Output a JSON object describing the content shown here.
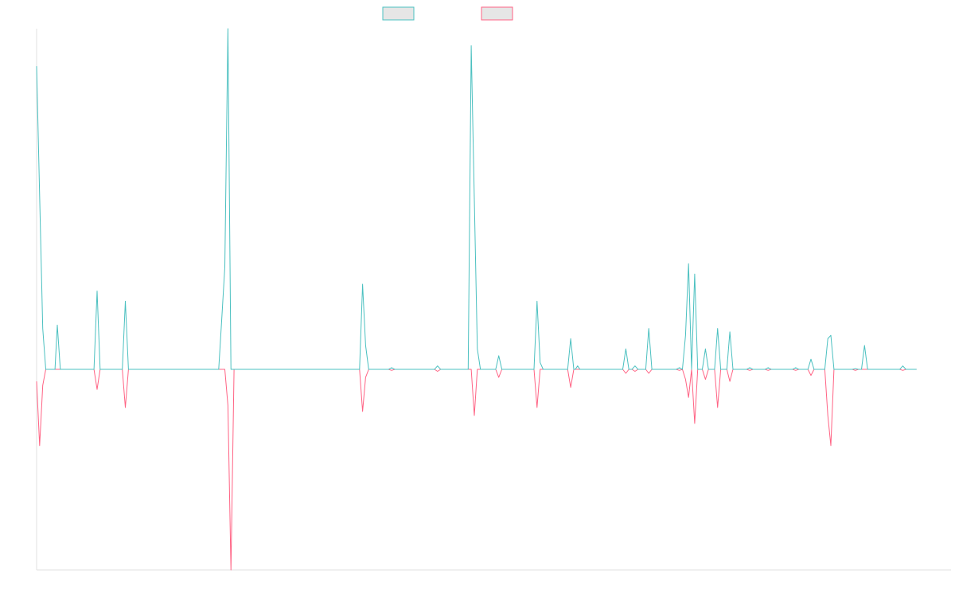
{
  "colors": {
    "series_a": "#4bc0c0",
    "series_b": "#ff6384",
    "legend_fill": "#e6e6e6",
    "axis": "#e0e0e0",
    "background": "#ffffff"
  },
  "chart_data": {
    "type": "line",
    "title": "",
    "xlabel": "",
    "ylabel": "",
    "grid": false,
    "legend": {
      "placement": "top-center",
      "show_names": false
    },
    "x_range": [
      0,
      1195
    ],
    "y_range": [
      -1.0,
      1.0
    ],
    "series": [
      {
        "color": "#4bc0c0",
        "points": [
          [
            0,
            0.89
          ],
          [
            8,
            0.12
          ],
          [
            12,
            0
          ],
          [
            24,
            0
          ],
          [
            27,
            0.13
          ],
          [
            31,
            0
          ],
          [
            75,
            0
          ],
          [
            79,
            0.23
          ],
          [
            83,
            0
          ],
          [
            112,
            0
          ],
          [
            116,
            0.2
          ],
          [
            120,
            0
          ],
          [
            238,
            0
          ],
          [
            242,
            0.15
          ],
          [
            246,
            0.3
          ],
          [
            250,
            1.0
          ],
          [
            254,
            0
          ],
          [
            422,
            0
          ],
          [
            426,
            0.25
          ],
          [
            430,
            0.07
          ],
          [
            434,
            0
          ],
          [
            460,
            0
          ],
          [
            464,
            0.005
          ],
          [
            468,
            0
          ],
          [
            520,
            0
          ],
          [
            524,
            0.01
          ],
          [
            528,
            0
          ],
          [
            564,
            0
          ],
          [
            568,
            0.95
          ],
          [
            576,
            0.06
          ],
          [
            580,
            0
          ],
          [
            600,
            0
          ],
          [
            604,
            0.04
          ],
          [
            608,
            0
          ],
          [
            650,
            0
          ],
          [
            654,
            0.2
          ],
          [
            658,
            0.02
          ],
          [
            662,
            0
          ],
          [
            694,
            0
          ],
          [
            698,
            0.09
          ],
          [
            702,
            0
          ],
          [
            704,
            0
          ],
          [
            707,
            0.01
          ],
          [
            710,
            0
          ],
          [
            766,
            0
          ],
          [
            770,
            0.06
          ],
          [
            774,
            0
          ],
          [
            778,
            0
          ],
          [
            782,
            0.01
          ],
          [
            786,
            0
          ],
          [
            796,
            0
          ],
          [
            800,
            0.12
          ],
          [
            804,
            0
          ],
          [
            836,
            0
          ],
          [
            840,
            0.005
          ],
          [
            844,
            0
          ],
          [
            848,
            0.1
          ],
          [
            852,
            0.31
          ],
          [
            856,
            0
          ],
          [
            860,
            0.28
          ],
          [
            864,
            0
          ],
          [
            870,
            0
          ],
          [
            874,
            0.06
          ],
          [
            878,
            0
          ],
          [
            886,
            0
          ],
          [
            890,
            0.12
          ],
          [
            894,
            0
          ],
          [
            902,
            0
          ],
          [
            906,
            0.11
          ],
          [
            910,
            0
          ],
          [
            928,
            0
          ],
          [
            932,
            0.005
          ],
          [
            936,
            0
          ],
          [
            952,
            0
          ],
          [
            956,
            0.005
          ],
          [
            960,
            0
          ],
          [
            988,
            0
          ],
          [
            992,
            0.005
          ],
          [
            996,
            0
          ],
          [
            1008,
            0
          ],
          [
            1012,
            0.03
          ],
          [
            1016,
            0
          ],
          [
            1030,
            0
          ],
          [
            1034,
            0.09
          ],
          [
            1038,
            0.1
          ],
          [
            1042,
            0
          ],
          [
            1066,
            0
          ],
          [
            1070,
            0.002
          ],
          [
            1074,
            0
          ],
          [
            1078,
            0
          ],
          [
            1082,
            0.07
          ],
          [
            1086,
            0
          ],
          [
            1128,
            0
          ],
          [
            1132,
            0.01
          ],
          [
            1136,
            0
          ],
          [
            1150,
            0
          ]
        ]
      },
      {
        "color": "#ff6384",
        "points": [
          [
            0,
            -0.06
          ],
          [
            4,
            -0.38
          ],
          [
            8,
            -0.08
          ],
          [
            12,
            0
          ],
          [
            75,
            0
          ],
          [
            79,
            -0.1
          ],
          [
            83,
            0
          ],
          [
            112,
            0
          ],
          [
            116,
            -0.19
          ],
          [
            120,
            0
          ],
          [
            246,
            0
          ],
          [
            250,
            -0.18
          ],
          [
            254,
            -1.0
          ],
          [
            258,
            0
          ],
          [
            422,
            0
          ],
          [
            426,
            -0.21
          ],
          [
            430,
            -0.04
          ],
          [
            434,
            0
          ],
          [
            460,
            0
          ],
          [
            464,
            -0.005
          ],
          [
            468,
            0
          ],
          [
            520,
            0
          ],
          [
            524,
            -0.01
          ],
          [
            528,
            0
          ],
          [
            568,
            0
          ],
          [
            572,
            -0.23
          ],
          [
            576,
            0
          ],
          [
            600,
            0
          ],
          [
            604,
            -0.04
          ],
          [
            608,
            0
          ],
          [
            650,
            0
          ],
          [
            654,
            -0.19
          ],
          [
            658,
            0
          ],
          [
            694,
            0
          ],
          [
            698,
            -0.09
          ],
          [
            702,
            0
          ],
          [
            766,
            0
          ],
          [
            770,
            -0.02
          ],
          [
            774,
            0
          ],
          [
            778,
            0
          ],
          [
            782,
            -0.01
          ],
          [
            786,
            0
          ],
          [
            796,
            0
          ],
          [
            800,
            -0.02
          ],
          [
            804,
            0
          ],
          [
            836,
            0
          ],
          [
            840,
            -0.005
          ],
          [
            844,
            0
          ],
          [
            848,
            -0.05
          ],
          [
            852,
            -0.14
          ],
          [
            856,
            0
          ],
          [
            860,
            -0.27
          ],
          [
            864,
            0
          ],
          [
            870,
            0
          ],
          [
            874,
            -0.05
          ],
          [
            878,
            0
          ],
          [
            886,
            0
          ],
          [
            890,
            -0.19
          ],
          [
            894,
            0
          ],
          [
            902,
            0
          ],
          [
            906,
            -0.06
          ],
          [
            910,
            0
          ],
          [
            928,
            0
          ],
          [
            932,
            -0.005
          ],
          [
            936,
            0
          ],
          [
            952,
            0
          ],
          [
            956,
            -0.005
          ],
          [
            960,
            0
          ],
          [
            988,
            0
          ],
          [
            992,
            -0.005
          ],
          [
            996,
            0
          ],
          [
            1008,
            0
          ],
          [
            1012,
            -0.03
          ],
          [
            1016,
            0
          ],
          [
            1030,
            0
          ],
          [
            1034,
            -0.23
          ],
          [
            1038,
            -0.38
          ],
          [
            1042,
            0
          ],
          [
            1066,
            0
          ],
          [
            1070,
            -0.005
          ],
          [
            1074,
            0
          ],
          [
            1128,
            0
          ],
          [
            1132,
            -0.005
          ],
          [
            1136,
            0
          ],
          [
            1150,
            0
          ]
        ]
      }
    ]
  }
}
